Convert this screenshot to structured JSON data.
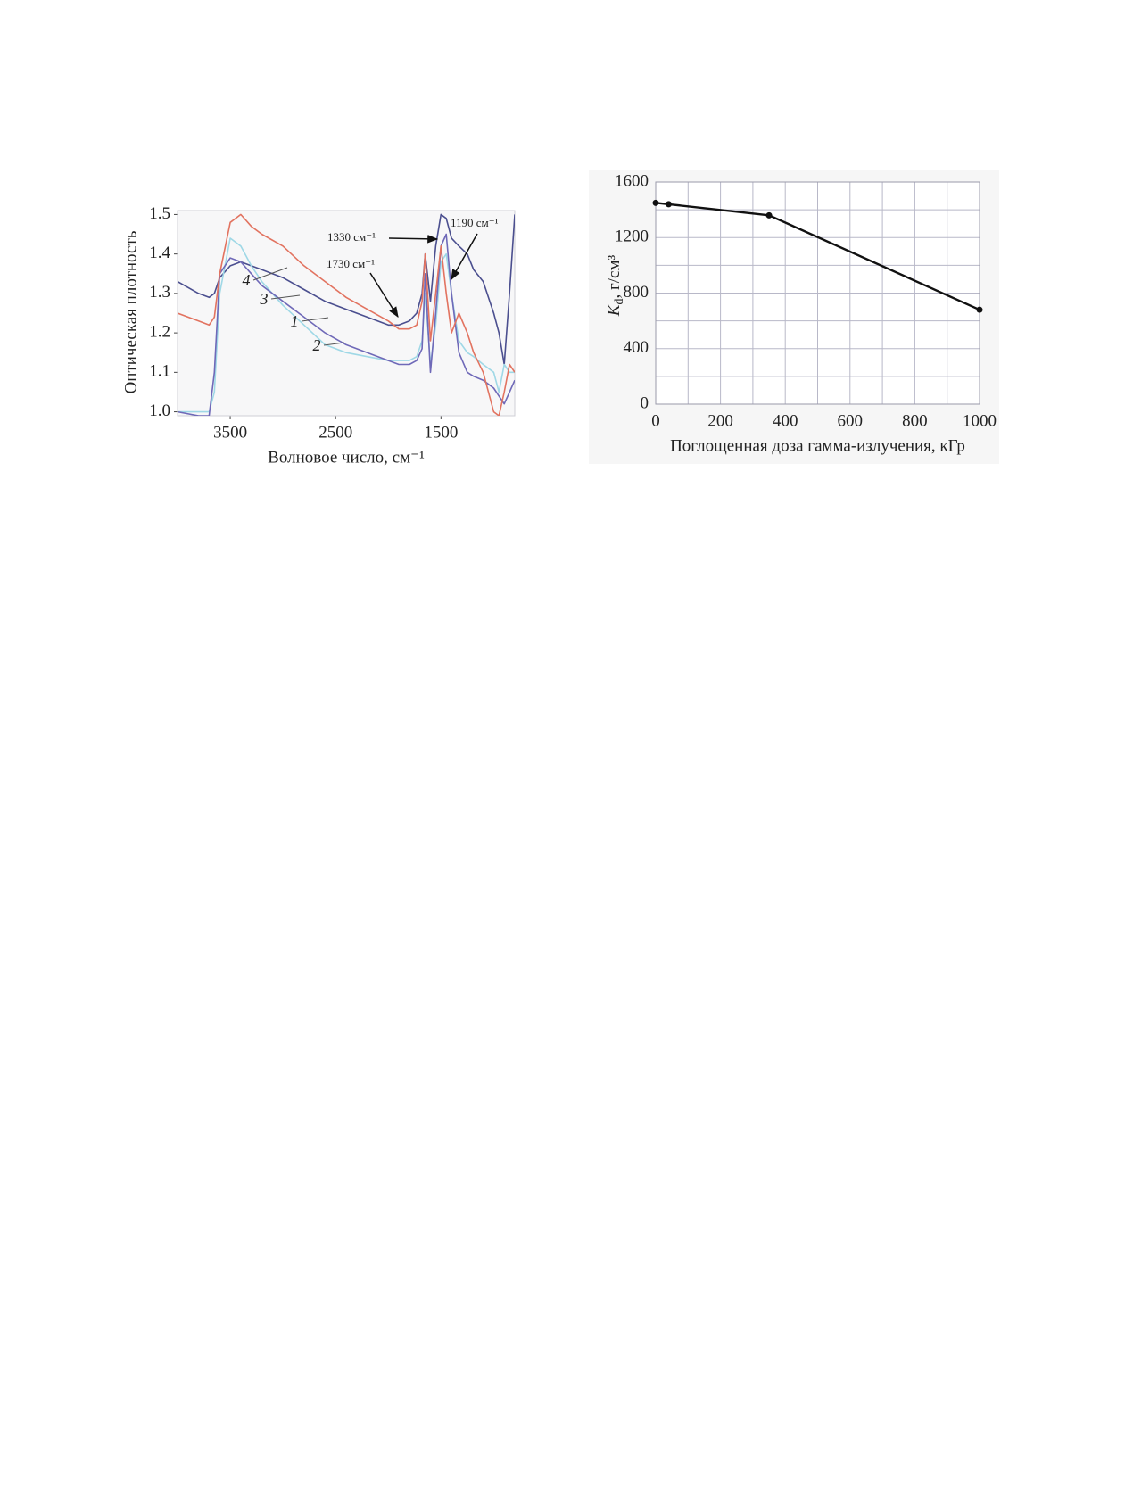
{
  "chart_data": [
    {
      "type": "line",
      "x_label": "Волновое число, см⁻¹",
      "y_label": "Оптическая плотность",
      "xlim": [
        4000,
        800
      ],
      "xticks": [
        3500,
        2500,
        1500
      ],
      "ylim": [
        0.99,
        1.51
      ],
      "yticks": [
        {
          "value": 1.0,
          "label": "1.0"
        },
        1.1,
        1.2,
        1.3,
        1.4,
        {
          "value": 1.5,
          "label": "1.5"
        }
      ],
      "annotations": [
        "1330 см⁻¹",
        "1190 см⁻¹",
        "1730 см⁻¹"
      ],
      "x": [
        4000,
        3800,
        3700,
        3650,
        3600,
        3500,
        3400,
        3300,
        3200,
        3000,
        2800,
        2600,
        2400,
        2200,
        2000,
        1900,
        1800,
        1730,
        1680,
        1650,
        1600,
        1550,
        1500,
        1450,
        1400,
        1330,
        1250,
        1190,
        1100,
        1000,
        950,
        900,
        850,
        800
      ],
      "series": [
        {
          "name": "1",
          "color": "#4b4f8f",
          "values": [
            1.33,
            1.3,
            1.29,
            1.3,
            1.34,
            1.37,
            1.38,
            1.37,
            1.36,
            1.34,
            1.31,
            1.28,
            1.26,
            1.24,
            1.22,
            1.22,
            1.23,
            1.25,
            1.3,
            1.4,
            1.28,
            1.42,
            1.5,
            1.49,
            1.44,
            1.42,
            1.4,
            1.36,
            1.33,
            1.25,
            1.2,
            1.12,
            1.3,
            1.5
          ]
        },
        {
          "name": "2",
          "color": "#9fd8e6",
          "values": [
            1.0,
            1.0,
            1.0,
            1.05,
            1.3,
            1.44,
            1.42,
            1.37,
            1.33,
            1.27,
            1.22,
            1.17,
            1.15,
            1.14,
            1.13,
            1.13,
            1.13,
            1.14,
            1.18,
            1.3,
            1.12,
            1.22,
            1.38,
            1.4,
            1.3,
            1.18,
            1.15,
            1.14,
            1.12,
            1.1,
            1.05,
            1.12,
            1.1,
            1.1
          ]
        },
        {
          "name": "3",
          "color": "#6f69b8",
          "values": [
            1.0,
            0.99,
            0.99,
            1.1,
            1.35,
            1.39,
            1.38,
            1.35,
            1.32,
            1.28,
            1.24,
            1.2,
            1.17,
            1.15,
            1.13,
            1.12,
            1.12,
            1.13,
            1.16,
            1.35,
            1.1,
            1.25,
            1.42,
            1.45,
            1.3,
            1.15,
            1.1,
            1.09,
            1.08,
            1.06,
            1.04,
            1.02,
            1.05,
            1.08
          ]
        },
        {
          "name": "4",
          "color": "#e27360",
          "values": [
            1.25,
            1.23,
            1.22,
            1.24,
            1.35,
            1.48,
            1.5,
            1.47,
            1.45,
            1.42,
            1.37,
            1.33,
            1.29,
            1.26,
            1.23,
            1.21,
            1.21,
            1.22,
            1.28,
            1.4,
            1.18,
            1.3,
            1.42,
            1.3,
            1.2,
            1.25,
            1.2,
            1.15,
            1.1,
            1.0,
            0.99,
            1.05,
            1.12,
            1.1
          ]
        }
      ]
    },
    {
      "type": "line",
      "markers": true,
      "grid": true,
      "x_label": "Поглощенная доза гамма-излучения, кГр",
      "y_label": {
        "symbol": "K",
        "subscript": "d",
        "unit": ", г/см³"
      },
      "xlim": [
        0,
        1000
      ],
      "xticks": [
        0,
        200,
        400,
        600,
        800,
        1000
      ],
      "xminor": [
        100,
        300,
        500,
        700,
        900
      ],
      "ylim": [
        0,
        1600
      ],
      "yticks": [
        0,
        400,
        800,
        1200,
        1600
      ],
      "yminor": [
        200,
        600,
        1000,
        1400
      ],
      "x": [
        0,
        40,
        350,
        1000
      ],
      "series": [
        {
          "name": "Kd",
          "color": "#111111",
          "values": [
            1450,
            1440,
            1360,
            680
          ]
        }
      ]
    }
  ]
}
